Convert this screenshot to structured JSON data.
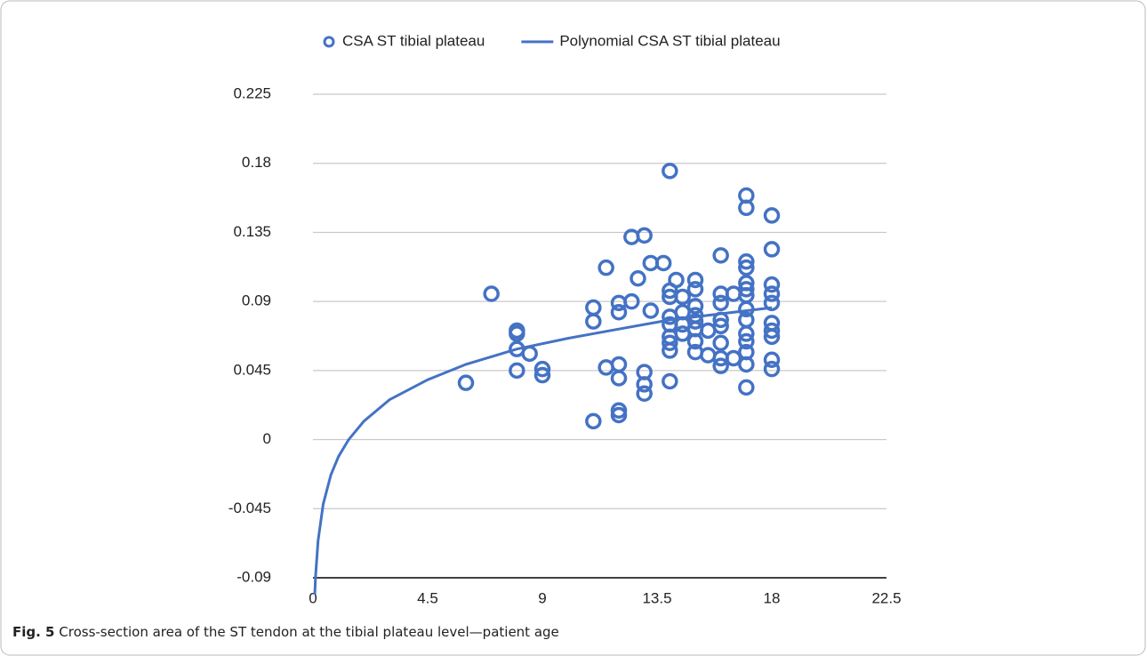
{
  "chart_data": {
    "type": "scatter",
    "xlim": [
      0,
      22.5
    ],
    "xticks": [
      0,
      4.5,
      9,
      13.5,
      18,
      22.5
    ],
    "ylim": [
      -0.09,
      0.225
    ],
    "yticks": [
      -0.09,
      -0.045,
      0,
      0.045,
      0.09,
      0.135,
      0.18,
      0.225
    ],
    "grid": true,
    "legend": "top",
    "series": [
      {
        "name": "CSA  ST tibial plateau",
        "color": "#4472c4",
        "mode": "markers",
        "x": [
          6,
          7,
          8,
          8,
          8,
          8,
          8.5,
          9,
          9,
          11,
          11,
          11,
          11.5,
          11.5,
          12,
          12,
          12,
          12,
          12,
          12,
          12.5,
          12.5,
          12.75,
          13,
          13,
          13,
          13,
          13.25,
          13.25,
          13.75,
          14,
          14,
          14,
          14,
          14,
          14,
          14,
          14,
          14,
          14.25,
          14.5,
          14.5,
          14.5,
          14.5,
          15,
          15,
          15,
          15,
          15,
          15,
          15,
          15,
          15.5,
          15.5,
          16,
          16,
          16,
          16,
          16,
          16,
          16,
          16,
          16.5,
          16.5,
          17,
          17,
          17,
          17,
          17,
          17,
          17,
          17,
          17,
          17,
          17,
          17,
          17,
          17,
          18,
          18,
          18,
          18,
          18,
          18,
          18,
          18,
          18,
          18
        ],
        "values": [
          0.037,
          0.095,
          0.071,
          0.069,
          0.059,
          0.045,
          0.056,
          0.046,
          0.042,
          0.086,
          0.077,
          0.012,
          0.112,
          0.047,
          0.089,
          0.083,
          0.049,
          0.04,
          0.019,
          0.016,
          0.132,
          0.09,
          0.105,
          0.133,
          0.044,
          0.036,
          0.03,
          0.115,
          0.084,
          0.115,
          0.175,
          0.097,
          0.08,
          0.067,
          0.058,
          0.038,
          0.093,
          0.075,
          0.063,
          0.104,
          0.093,
          0.083,
          0.075,
          0.069,
          0.104,
          0.098,
          0.087,
          0.081,
          0.077,
          0.072,
          0.064,
          0.057,
          0.071,
          0.055,
          0.12,
          0.095,
          0.089,
          0.078,
          0.074,
          0.063,
          0.053,
          0.048,
          0.095,
          0.053,
          0.159,
          0.151,
          0.116,
          0.112,
          0.102,
          0.098,
          0.094,
          0.085,
          0.078,
          0.069,
          0.064,
          0.057,
          0.049,
          0.034,
          0.146,
          0.124,
          0.101,
          0.095,
          0.089,
          0.076,
          0.071,
          0.067,
          0.052,
          0.046
        ]
      },
      {
        "name": "Polynomial CSA ST tibial plateau",
        "color": "#4472c4",
        "mode": "lines",
        "x": [
          0.07,
          0.1,
          0.2,
          0.4,
          0.7,
          1,
          1.4,
          2,
          3,
          4.5,
          6,
          8,
          10,
          12,
          14,
          16,
          18
        ],
        "values": [
          -0.101,
          -0.089,
          -0.066,
          -0.042,
          -0.023,
          -0.011,
          0,
          0.012,
          0.026,
          0.039,
          0.049,
          0.059,
          0.066,
          0.072,
          0.078,
          0.082,
          0.086
        ]
      }
    ]
  },
  "caption": {
    "label": "Fig. 5",
    "text": "Cross-section area of the ST tendon at the tibial plateau level—patient age"
  }
}
